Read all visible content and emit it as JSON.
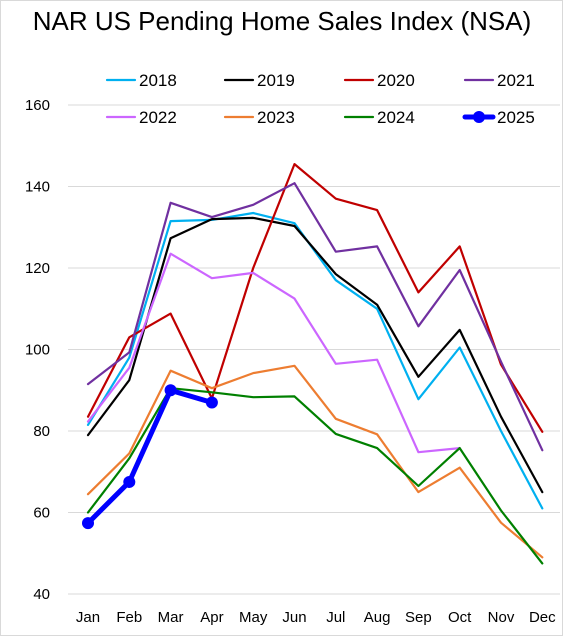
{
  "chart_data": {
    "type": "line",
    "title": "NAR US Pending Home Sales Index (NSA)",
    "xlabel": "",
    "ylabel": "",
    "categories": [
      "Jan",
      "Feb",
      "Mar",
      "Apr",
      "May",
      "Jun",
      "Jul",
      "Aug",
      "Sep",
      "Oct",
      "Nov",
      "Dec"
    ],
    "ylim": [
      40,
      160
    ],
    "yticks": [
      40,
      60,
      80,
      100,
      120,
      140,
      160
    ],
    "grid": "horizontal",
    "legend": "top",
    "series": [
      {
        "name": "2018",
        "color": "#00b0f0",
        "values": [
          81.5,
          98,
          131.5,
          131.8,
          133.5,
          131,
          117,
          110,
          87.8,
          100.5,
          80,
          61
        ]
      },
      {
        "name": "2019",
        "color": "#000000",
        "values": [
          79,
          92.5,
          127.3,
          132,
          132.3,
          130.3,
          118.5,
          111,
          93.3,
          104.8,
          83.5,
          65
        ]
      },
      {
        "name": "2020",
        "color": "#c00000",
        "values": [
          83.5,
          103,
          108.8,
          88,
          120,
          145.5,
          137,
          134.2,
          114,
          125.3,
          96.3,
          79.8
        ]
      },
      {
        "name": "2021",
        "color": "#7030a0",
        "values": [
          91.5,
          99.3,
          136,
          132.5,
          135.5,
          140.8,
          124,
          125.3,
          105.7,
          119.5,
          97,
          75.3
        ]
      },
      {
        "name": "2022",
        "color": "#cc66ff",
        "values": [
          82.3,
          95.5,
          123.5,
          117.5,
          118.8,
          112.5,
          96.5,
          97.5,
          74.8,
          75.8,
          null,
          null
        ]
      },
      {
        "name": "2023",
        "color": "#ed7d31",
        "values": [
          64.5,
          74.5,
          94.8,
          90.5,
          94.2,
          96,
          83,
          79.2,
          65,
          71,
          57.5,
          49
        ]
      },
      {
        "name": "2024",
        "color": "#008000",
        "values": [
          60,
          73.3,
          90.5,
          89.5,
          88.3,
          88.5,
          79.3,
          75.8,
          66.5,
          75.8,
          60.5,
          47.5
        ]
      },
      {
        "name": "2025",
        "color": "#0000ff",
        "values": [
          57.4,
          67.5,
          90,
          87,
          null,
          null,
          null,
          null,
          null,
          null,
          null,
          null
        ],
        "markers": true
      }
    ]
  }
}
